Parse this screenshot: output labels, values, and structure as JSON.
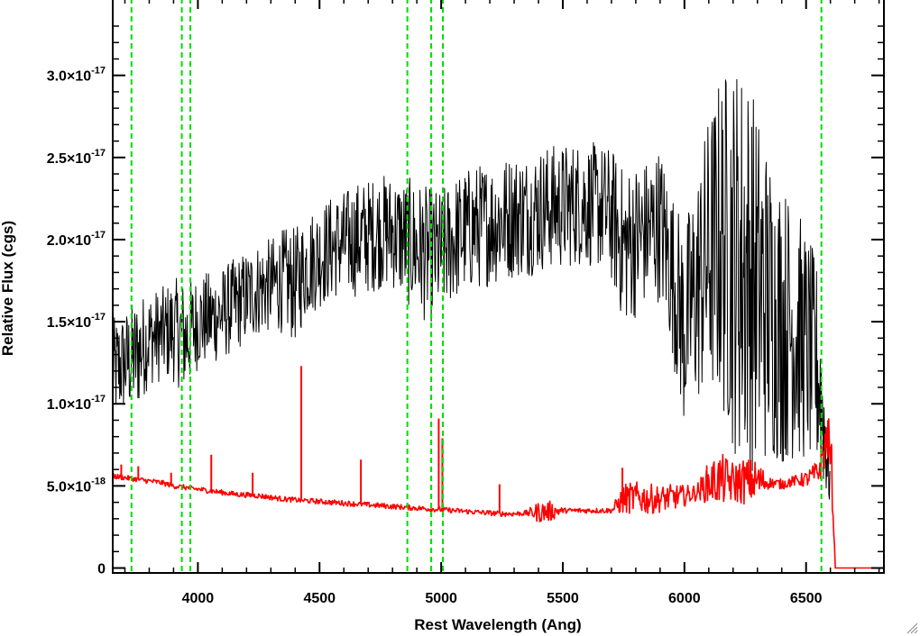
{
  "chart_data": {
    "type": "line",
    "title": "",
    "xlabel": "Rest Wavelength (Ang)",
    "ylabel": "Relative Flux (cgs)",
    "xlim": [
      3650,
      6820
    ],
    "ylim": [
      -3e-19,
      3.47e-17
    ],
    "x_ticks": [
      {
        "value": 4000,
        "label": "4000"
      },
      {
        "value": 4500,
        "label": "4500"
      },
      {
        "value": 5000,
        "label": "5000"
      },
      {
        "value": 5500,
        "label": "5500"
      },
      {
        "value": 6000,
        "label": "6000"
      },
      {
        "value": 6500,
        "label": "6500"
      }
    ],
    "y_ticks": [
      {
        "value": 0,
        "mant": "0",
        "exp": ""
      },
      {
        "value": 5e-18,
        "mant": "5.0×10",
        "exp": "-18"
      },
      {
        "value": 1e-17,
        "mant": "1.0×10",
        "exp": "-17"
      },
      {
        "value": 1.5e-17,
        "mant": "1.5×10",
        "exp": "-17"
      },
      {
        "value": 2e-17,
        "mant": "2.0×10",
        "exp": "-17"
      },
      {
        "value": 2.5e-17,
        "mant": "2.5×10",
        "exp": "-17"
      },
      {
        "value": 3e-17,
        "mant": "3.0×10",
        "exp": "-17"
      }
    ],
    "reference_lines_x": [
      3727,
      3934,
      3969,
      4861,
      4959,
      5007,
      6563
    ],
    "series": [
      {
        "color": "#000000",
        "x": [
          3650,
          3700,
          3750,
          3800,
          3850,
          3900,
          3950,
          4000,
          4050,
          4100,
          4150,
          4200,
          4250,
          4300,
          4350,
          4400,
          4450,
          4500,
          4550,
          4600,
          4650,
          4700,
          4750,
          4800,
          4850,
          4900,
          4950,
          5000,
          5050,
          5100,
          5150,
          5200,
          5250,
          5300,
          5350,
          5400,
          5450,
          5500,
          5550,
          5600,
          5650,
          5700,
          5750,
          5800,
          5850,
          5900,
          5950,
          6000,
          6050,
          6100,
          6150,
          6200,
          6250,
          6300,
          6350,
          6400,
          6450,
          6500,
          6550,
          6600
        ],
        "y": [
          1.2e-17,
          1.25e-17,
          1.3e-17,
          1.4e-17,
          1.42e-17,
          1.45e-17,
          1.4e-17,
          1.5e-17,
          1.52e-17,
          1.55e-17,
          1.6e-17,
          1.65e-17,
          1.7e-17,
          1.72e-17,
          1.75e-17,
          1.72e-17,
          1.85e-17,
          1.9e-17,
          1.95e-17,
          1.98e-17,
          2e-17,
          2.02e-17,
          2.05e-17,
          2.05e-17,
          2e-17,
          1.95e-17,
          1.9e-17,
          1.92e-17,
          2e-17,
          2.05e-17,
          2.08e-17,
          2.1e-17,
          2.12e-17,
          2.15e-17,
          2.15e-17,
          2.18e-17,
          2.2e-17,
          2.2e-17,
          2.22e-17,
          2.22e-17,
          2.2e-17,
          2.15e-17,
          1.95e-17,
          2e-17,
          2.05e-17,
          2.1e-17,
          1.8e-17,
          1.45e-17,
          1.7e-17,
          1.9e-17,
          2e-17,
          1.9e-17,
          1.85e-17,
          1.7e-17,
          1.6e-17,
          1.5e-17,
          1.45e-17,
          1.35e-17,
          1.2e-17,
          5e-18
        ],
        "noise": [
          2e-18,
          2e-18,
          2.2e-18,
          1.8e-18,
          1.8e-18,
          2e-18,
          2.2e-18,
          1.8e-18,
          1.8e-18,
          1.8e-18,
          1.8e-18,
          1.8e-18,
          1.8e-18,
          1.8e-18,
          2e-18,
          2.2e-18,
          2e-18,
          2e-18,
          2e-18,
          2e-18,
          2.2e-18,
          2.2e-18,
          2.2e-18,
          2.2e-18,
          2.4e-18,
          2.6e-18,
          2.6e-18,
          2.4e-18,
          2.4e-18,
          2.4e-18,
          2.4e-18,
          2.4e-18,
          2.4e-18,
          2.4e-18,
          2.4e-18,
          2.4e-18,
          2.4e-18,
          2.4e-18,
          2.4e-18,
          2.4e-18,
          2.4e-18,
          2.6e-18,
          3e-18,
          3e-18,
          2.8e-18,
          3e-18,
          3.2e-18,
          4e-18,
          4.5e-18,
          5.5e-18,
          6.5e-18,
          7.5e-18,
          8e-18,
          7e-18,
          6e-18,
          5.5e-18,
          5e-18,
          4.5e-18,
          4e-18,
          1e-18
        ]
      },
      {
        "color": "#ff0000",
        "x": [
          3650,
          3700,
          3750,
          3800,
          3850,
          3900,
          3950,
          4000,
          4050,
          4100,
          4150,
          4200,
          4250,
          4300,
          4350,
          4400,
          4450,
          4500,
          4550,
          4600,
          4650,
          4700,
          4750,
          4800,
          4850,
          4900,
          4950,
          5000,
          5050,
          5100,
          5150,
          5200,
          5250,
          5300,
          5350,
          5400,
          5450,
          5500,
          5550,
          5600,
          5650,
          5700,
          5750,
          5800,
          5850,
          5900,
          5950,
          6000,
          6050,
          6100,
          6150,
          6200,
          6250,
          6300,
          6350,
          6400,
          6450,
          6500,
          6550,
          6590,
          6605,
          6620,
          6820
        ],
        "y": [
          5.6e-18,
          5.5e-18,
          5.4e-18,
          5.3e-18,
          5.2e-18,
          5e-18,
          4.9e-18,
          4.8e-18,
          4.7e-18,
          4.6e-18,
          4.5e-18,
          4.45e-18,
          4.4e-18,
          4.3e-18,
          4.2e-18,
          4.15e-18,
          4.1e-18,
          4.05e-18,
          4e-18,
          3.95e-18,
          3.9e-18,
          3.85e-18,
          3.8e-18,
          3.75e-18,
          3.7e-18,
          3.65e-18,
          3.6e-18,
          3.55e-18,
          3.5e-18,
          3.45e-18,
          3.4e-18,
          3.35e-18,
          3.3e-18,
          3.3e-18,
          3.35e-18,
          3.4e-18,
          3.45e-18,
          3.5e-18,
          3.5e-18,
          3.5e-18,
          3.5e-18,
          3.5e-18,
          4.2e-18,
          4.3e-18,
          4.2e-18,
          4.2e-18,
          4.3e-18,
          4.4e-18,
          4.6e-18,
          5.2e-18,
          5.4e-18,
          5.2e-18,
          5.3e-18,
          5.3e-18,
          5.2e-18,
          5.1e-18,
          5.3e-18,
          5.4e-18,
          5.8e-18,
          8e-18,
          6e-18,
          0,
          0
        ],
        "noise": [
          1e-19,
          1e-19,
          1e-19,
          1e-19,
          1e-19,
          1e-19,
          1e-19,
          1e-19,
          1e-19,
          1e-19,
          1e-19,
          1e-19,
          1e-19,
          1e-19,
          1e-19,
          1e-19,
          1e-19,
          1e-19,
          1e-19,
          1e-19,
          1e-19,
          1e-19,
          1e-19,
          1e-19,
          1e-19,
          1e-19,
          1e-19,
          1e-19,
          1e-19,
          1e-19,
          1e-19,
          1e-19,
          1e-19,
          1e-19,
          1e-19,
          4e-19,
          4e-19,
          1e-19,
          1e-19,
          1e-19,
          1e-19,
          1e-19,
          6e-19,
          6e-19,
          6e-19,
          5e-19,
          5e-19,
          4e-19,
          3e-19,
          8e-19,
          1e-18,
          8e-19,
          9e-19,
          8e-19,
          2e-19,
          2e-19,
          2e-19,
          3e-19,
          5e-19,
          1e-18,
          1e-18,
          0,
          0
        ]
      }
    ],
    "spikes": [
      {
        "x": 3685,
        "y": 6.3e-18
      },
      {
        "x": 3755,
        "y": 6.2e-18
      },
      {
        "x": 3890,
        "y": 5.8e-18
      },
      {
        "x": 4055,
        "y": 6.9e-18
      },
      {
        "x": 4225,
        "y": 5.8e-18
      },
      {
        "x": 4425,
        "y": 1.23e-17
      },
      {
        "x": 4670,
        "y": 6.6e-18
      },
      {
        "x": 4990,
        "y": 9.1e-18
      },
      {
        "x": 5005,
        "y": 7.9e-18
      },
      {
        "x": 5240,
        "y": 5.1e-18
      },
      {
        "x": 5745,
        "y": 6.1e-18
      },
      {
        "x": 6590,
        "y": 9e-18
      }
    ],
    "colors": {
      "spectrum": "#000000",
      "model": "#ff0000",
      "reference_lines": "#00dd00"
    }
  }
}
